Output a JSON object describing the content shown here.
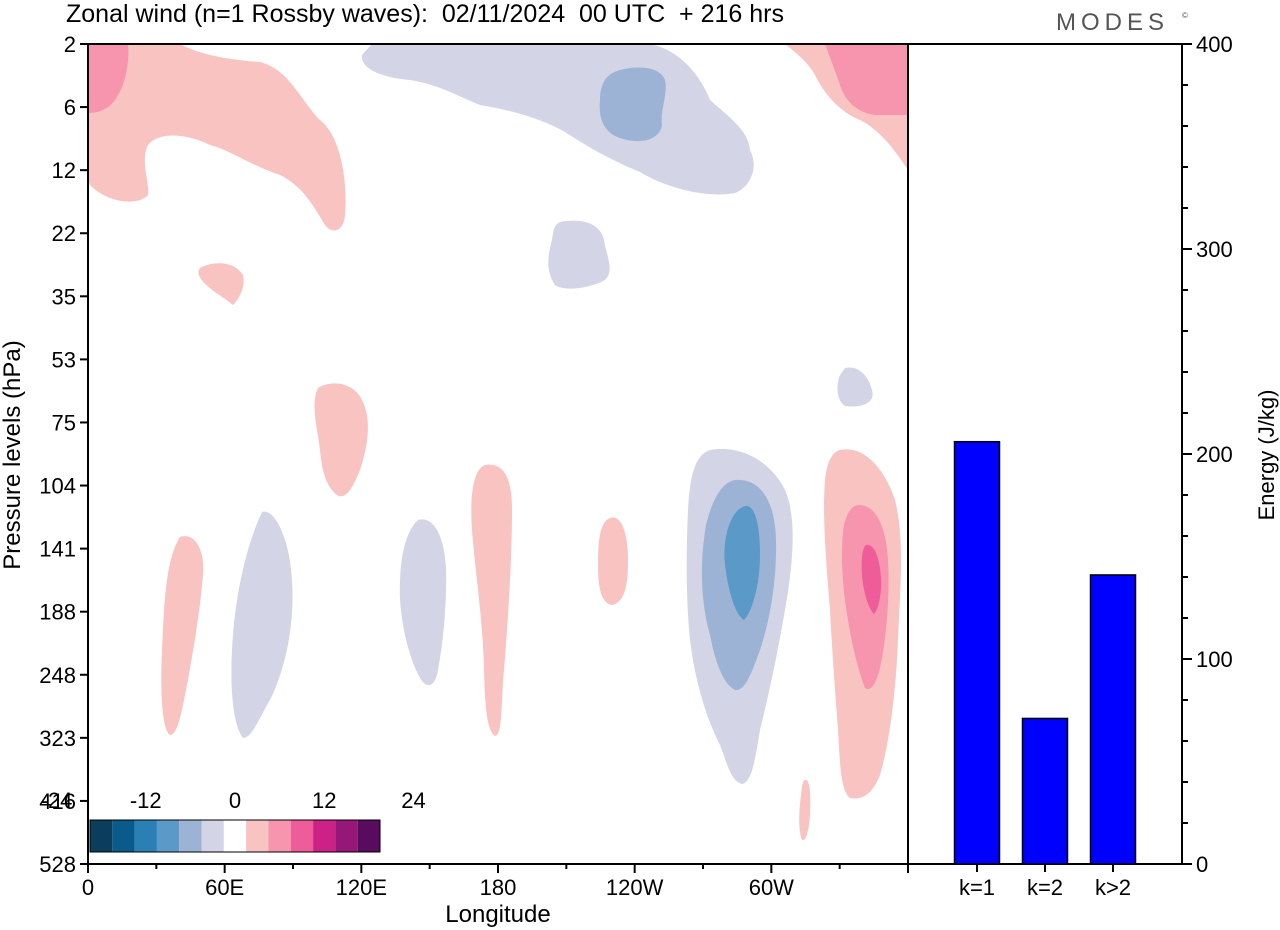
{
  "header": {
    "title": "Zonal wind (n=1 Rossby waves):  02/11/2024  00 UTC  + 216 hrs",
    "brand": "MODES",
    "brand_mark": "©"
  },
  "chart_data": [
    {
      "type": "heatmap",
      "title": "Zonal wind (n=1 Rossby waves):  02/11/2024  00 UTC  + 216 hrs",
      "xlabel": "Longitude",
      "ylabel": "Pressure levels (hPa)",
      "x_ticks": [
        {
          "label": "0",
          "lon": 0
        },
        {
          "label": "60E",
          "lon": 60
        },
        {
          "label": "120E",
          "lon": 120
        },
        {
          "label": "180",
          "lon": 180
        },
        {
          "label": "120W",
          "lon": 240
        },
        {
          "label": "60W",
          "lon": 300
        }
      ],
      "xlim": [
        0,
        360
      ],
      "y_ticks": [
        "2",
        "6",
        "12",
        "22",
        "35",
        "53",
        "75",
        "104",
        "141",
        "188",
        "248",
        "323",
        "416",
        "528"
      ],
      "colorbar": {
        "labels": [
          "-24",
          "-12",
          "0",
          "12",
          "24"
        ],
        "levels": [
          -24,
          -12,
          0,
          12,
          24
        ],
        "colors": [
          "#0b3d5c",
          "#0a5a8c",
          "#2a7fb5",
          "#5b9ac8",
          "#9db3d6",
          "#d3d4e6",
          "#ffffff",
          "#f8c3c0",
          "#f895ae",
          "#ee5c9a",
          "#cc2288",
          "#961778",
          "#5a0b60"
        ]
      },
      "regions": [
        {
          "lon": 5,
          "level": 1.2,
          "sign": "positive",
          "value": 6
        },
        {
          "lon": 80,
          "level": 1.5,
          "sign": "positive",
          "value": 3
        },
        {
          "lon": 150,
          "level": 4.4,
          "sign": "positive",
          "value": 3
        },
        {
          "lon": 235,
          "level": 1.0,
          "sign": "negative",
          "value": -6
        },
        {
          "lon": 290,
          "level": 1.0,
          "sign": "negative",
          "value": -3
        },
        {
          "lon": 345,
          "level": 0.8,
          "sign": "positive",
          "value": 6
        },
        {
          "lon": 305,
          "level": 8.6,
          "sign": "negative",
          "value": -9
        },
        {
          "lon": 342,
          "level": 8.7,
          "sign": "positive",
          "value": 9
        }
      ]
    },
    {
      "type": "bar",
      "categories": [
        "k=1",
        "k=2",
        "k>2"
      ],
      "values": [
        206,
        71,
        141
      ],
      "ylabel": "Energy (J/kg)",
      "y_ticks": [
        "0",
        "100",
        "200",
        "300",
        "400"
      ],
      "ylim": [
        0,
        400
      ],
      "bar_color": "#0000ff"
    }
  ]
}
